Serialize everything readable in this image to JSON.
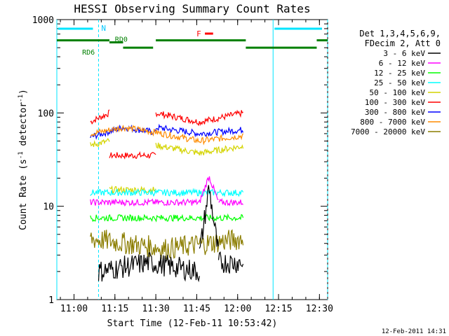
{
  "chart_data": {
    "type": "line",
    "title": "HESSI Observing Summary Count Rates",
    "xlabel": "Start Time (12-Feb-11 10:53:42)",
    "ylabel": "Count Rate (s",
    "ylabel_sup": "-1",
    "ylabel_mid": " detector",
    "ylabel_sup2": "-1",
    "ylabel_end": ")",
    "y_scale": "log",
    "ylim": [
      1,
      1000
    ],
    "xlim": [
      "10:53:42",
      "12:33:00"
    ],
    "x_ticks": [
      "11:00",
      "11:15",
      "11:30",
      "11:45",
      "12:00",
      "12:15",
      "12:30"
    ],
    "y_ticks": [
      "1",
      "10",
      "100",
      "1000"
    ],
    "footer_date": "12-Feb-2011 14:31",
    "legend": {
      "header1": "Det 1,3,4,5,6,9,",
      "header2": "FDecim 2, Att 0",
      "entries": [
        {
          "label": "3 - 6 keV",
          "color": "#000000"
        },
        {
          "label": "6 - 12 keV",
          "color": "#ff00ff"
        },
        {
          "label": "12 - 25 keV",
          "color": "#00ff00"
        },
        {
          "label": "25 - 50 keV",
          "color": "#00ffff"
        },
        {
          "label": "50 - 100 keV",
          "color": "#d4d400"
        },
        {
          "label": "100 - 300 keV",
          "color": "#ff0000"
        },
        {
          "label": "300 - 800 keV",
          "color": "#0000ff"
        },
        {
          "label": "800 - 7000 keV",
          "color": "#ff8c00"
        },
        {
          "label": "7000 - 20000 keV",
          "color": "#8b7d00"
        }
      ]
    },
    "annotations": {
      "night": "N",
      "flare": "F",
      "rd0": "RD0",
      "rd6": "RD6"
    },
    "series": [
      {
        "color": "#ff0000",
        "segments": [
          {
            "from": "11:06",
            "to": "11:13",
            "values": [
              80,
              100
            ]
          },
          {
            "from": "11:13",
            "to": "11:30",
            "values": [
              35,
              35
            ]
          },
          {
            "from": "11:30",
            "to": "12:02",
            "values": [
              100,
              80,
              100
            ]
          }
        ]
      },
      {
        "color": "#0000ff",
        "segments": [
          {
            "from": "11:06",
            "to": "11:30",
            "values": [
              55,
              70,
              62
            ]
          },
          {
            "from": "11:30",
            "to": "12:02",
            "values": [
              70,
              60,
              66
            ]
          }
        ]
      },
      {
        "color": "#ff8c00",
        "segments": [
          {
            "from": "11:06",
            "to": "11:30",
            "values": [
              60,
              70,
              62
            ]
          },
          {
            "from": "11:30",
            "to": "12:02",
            "values": [
              62,
              50,
              57
            ]
          }
        ]
      },
      {
        "color": "#d4d400",
        "segments": [
          {
            "from": "11:06",
            "to": "11:13",
            "values": [
              45,
              50
            ]
          },
          {
            "from": "11:13",
            "to": "11:30",
            "values": [
              15,
              15
            ]
          },
          {
            "from": "11:30",
            "to": "12:02",
            "values": [
              45,
              37,
              44
            ]
          }
        ]
      },
      {
        "color": "#00ffff",
        "segments": [
          {
            "from": "11:06",
            "to": "12:02",
            "values": [
              14,
              14,
              14
            ]
          }
        ]
      },
      {
        "color": "#ff00ff",
        "segments": [
          {
            "from": "11:06",
            "to": "11:46",
            "values": [
              11,
              11
            ]
          },
          {
            "from": "11:46",
            "to": "11:53",
            "values": [
              11,
              21,
              11
            ]
          },
          {
            "from": "11:53",
            "to": "12:02",
            "values": [
              11,
              11
            ]
          }
        ]
      },
      {
        "color": "#00ff00",
        "segments": [
          {
            "from": "11:06",
            "to": "12:02",
            "values": [
              7.5,
              7.5,
              7.5
            ]
          }
        ]
      },
      {
        "color": "#8b7d00",
        "segments": [
          {
            "from": "11:06",
            "to": "12:02",
            "values": [
              4.5,
              3.5,
              4.5
            ]
          }
        ]
      },
      {
        "color": "#000000",
        "segments": [
          {
            "from": "11:09",
            "to": "11:46",
            "values": [
              2,
              2.5,
              2
            ]
          },
          {
            "from": "11:46",
            "to": "11:53",
            "values": [
              3,
              16,
              3
            ]
          },
          {
            "from": "11:53",
            "to": "12:02",
            "values": [
              2.5,
              2.5
            ]
          }
        ]
      }
    ],
    "night_intervals": [
      [
        "10:53:42",
        "11:09"
      ],
      [
        "12:13",
        "12:33"
      ]
    ],
    "attenuator_bar": [
      [
        "10:53:42",
        "11:09"
      ],
      [
        "12:13",
        "12:33"
      ]
    ],
    "flare_bar": [
      "11:48",
      "11:51"
    ],
    "decimation_bars": [
      {
        "from": "10:53:42",
        "to": "11:13",
        "value": 600,
        "label_pos": "RD6"
      },
      {
        "from": "11:13",
        "to": "11:18",
        "value": 570
      },
      {
        "from": "11:18",
        "to": "11:29",
        "value": 500,
        "label_pos": "RD0"
      },
      {
        "from": "11:30",
        "to": "12:03",
        "value": 600
      },
      {
        "from": "12:03",
        "to": "12:29",
        "value": 500
      },
      {
        "from": "12:29",
        "to": "12:33",
        "value": 600
      }
    ]
  }
}
